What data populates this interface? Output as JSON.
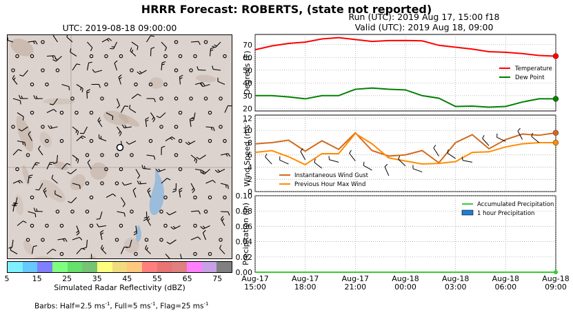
{
  "title": "HRRR Forecast: ROBERTS, (state not reported)",
  "run_label": "Run (UTC): 2019 Aug 17, 15:00 f18",
  "valid_label": "Valid (UTC): 2019 Aug 18, 09:00",
  "map": {
    "title": "UTC: 2019-08-18 09:00:00",
    "colorbar_label": "Simulated Radar Reflectivity (dBZ)",
    "colorbar_ticks": [
      "5",
      "15",
      "25",
      "35",
      "45",
      "55",
      "65",
      "75"
    ],
    "colorbar_colors": [
      "#7ff0ff",
      "#66c8ff",
      "#7f7fff",
      "#7fff7f",
      "#66e06a",
      "#74c474",
      "#ffff7f",
      "#f0dc7f",
      "#ffc87f",
      "#ff7f7f",
      "#e87474",
      "#e07f7f",
      "#ff7fff",
      "#c8a0e6",
      "#808080"
    ],
    "barbs_note": "Barbs: Half=2.5 ms",
    "barbs_full": ", Full=5 ms",
    "barbs_flag": ", Flag=25 ms",
    "barbs_exp": "-1"
  },
  "chart_data": [
    {
      "type": "line",
      "ylabel": "Degrees (F)",
      "ylim": [
        18,
        78
      ],
      "yticks": [
        "20",
        "30",
        "40",
        "50",
        "60",
        "70"
      ],
      "x": [
        0,
        1,
        2,
        3,
        4,
        5,
        6,
        7,
        8,
        9,
        10,
        11,
        12,
        13,
        14,
        15,
        16,
        17,
        18
      ],
      "series": [
        {
          "name": "Temperature",
          "color": "#ff0000",
          "values": [
            66,
            69,
            71,
            72,
            74.5,
            75.5,
            74,
            72.5,
            73.2,
            73.3,
            73,
            69.5,
            68,
            66.5,
            64.5,
            64,
            63,
            61.5,
            61
          ]
        },
        {
          "name": "Dew Point",
          "color": "#008000",
          "values": [
            30,
            30,
            29,
            27.5,
            30,
            30,
            35,
            36,
            35,
            34.5,
            30,
            28,
            21.5,
            21.8,
            21,
            21.5,
            25,
            27.5,
            27.5
          ]
        }
      ],
      "legend": "right"
    },
    {
      "type": "line",
      "ylabel": "Wind Speed (ms",
      "ylabel_exp": "-1",
      "ylim": [
        0,
        12.5
      ],
      "yticks": [
        "0",
        "2",
        "4",
        "6",
        "8",
        "10",
        "12"
      ],
      "x": [
        0,
        1,
        2,
        3,
        4,
        5,
        6,
        7,
        8,
        9,
        10,
        11,
        12,
        13,
        14,
        15,
        16,
        17,
        18
      ],
      "series": [
        {
          "name": "Instantaneous Wind Gust",
          "color": "#d2691e",
          "values": [
            7.8,
            8,
            8.4,
            6.6,
            8.3,
            6.9,
            9.6,
            6.7,
            5.8,
            6,
            6.7,
            4.7,
            8,
            9.3,
            7,
            8.5,
            9.4,
            9.2,
            9.6
          ]
        },
        {
          "name": "Previous Hour Max Wind",
          "color": "#ff8c00",
          "values": [
            6.4,
            6.7,
            5.7,
            4.4,
            6.2,
            6.2,
            9.5,
            7.8,
            5.5,
            5,
            4.5,
            4.6,
            4.9,
            6.4,
            6.5,
            7.3,
            7.8,
            8,
            8
          ]
        }
      ],
      "legend": "lower-left"
    },
    {
      "type": "bar",
      "ylabel": "Precipitation (in)",
      "ylim": [
        0,
        0.1
      ],
      "yticks": [
        "0.00",
        "0.02",
        "0.04",
        "0.06",
        "0.08",
        "0.10"
      ],
      "xtick_dates": [
        "Aug-17",
        "Aug-17",
        "Aug-17",
        "Aug-18",
        "Aug-18",
        "Aug-18",
        "Aug-18"
      ],
      "xtick_times": [
        "15:00",
        "18:00",
        "21:00",
        "00:00",
        "03:00",
        "06:00",
        "09:00"
      ],
      "series": [
        {
          "name": "Accumulated Precipitation",
          "color": "#32cd32",
          "values": [
            0,
            0,
            0,
            0,
            0,
            0,
            0,
            0,
            0,
            0,
            0,
            0,
            0,
            0,
            0,
            0,
            0,
            0,
            0
          ]
        },
        {
          "name": "1 hour Precipitation",
          "color": "#1e7fd6",
          "values": [
            0,
            0,
            0,
            0,
            0,
            0,
            0,
            0,
            0,
            0,
            0,
            0,
            0,
            0,
            0,
            0,
            0,
            0,
            0
          ]
        }
      ],
      "legend": "top-right"
    }
  ]
}
